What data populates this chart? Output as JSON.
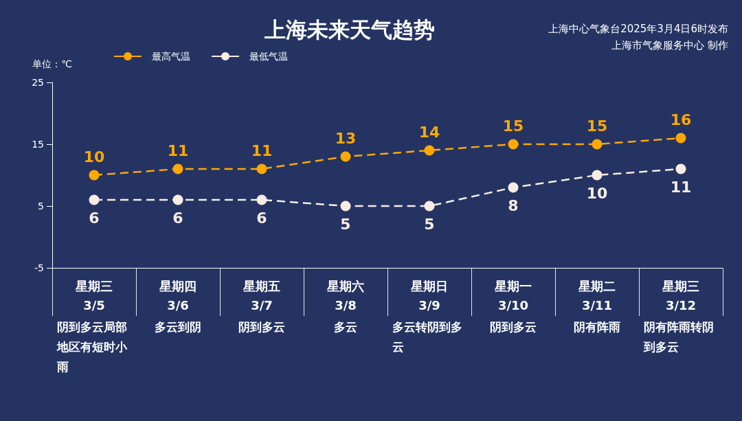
{
  "chart_data": {
    "type": "line",
    "title": "上海未来天气趋势",
    "ylabel": "单位：℃",
    "categories": [
      "星期三\n3/5",
      "星期四\n3/6",
      "星期五\n3/7",
      "星期六\n3/8",
      "星期日\n3/9",
      "星期一\n3/10",
      "星期二\n3/11",
      "星期三\n3/12"
    ],
    "series": [
      {
        "name": "最高气温",
        "color": "#ffa800",
        "values": [
          10,
          11,
          11,
          13,
          14,
          15,
          15,
          16
        ]
      },
      {
        "name": "最低气温",
        "color": "#f8ece4",
        "values": [
          6,
          6,
          6,
          5,
          5,
          8,
          10,
          11
        ]
      }
    ],
    "ylim": [
      -5,
      25
    ],
    "yticks": [
      -5,
      5,
      15,
      25
    ],
    "legend": "top left",
    "marker": "circle",
    "line_style": "dashed",
    "data_labels": true,
    "annotations": [
      "上海中心气象台2025年3月4日6时发布",
      "上海市气象服务中心 制作",
      "阴到多云局部地区有短时小雨",
      "多云到阴",
      "阴到多云",
      "多云",
      "多云转阴到多云",
      "阴到多云",
      "阴有阵雨",
      "阴有阵雨转阴到多云"
    ]
  }
}
